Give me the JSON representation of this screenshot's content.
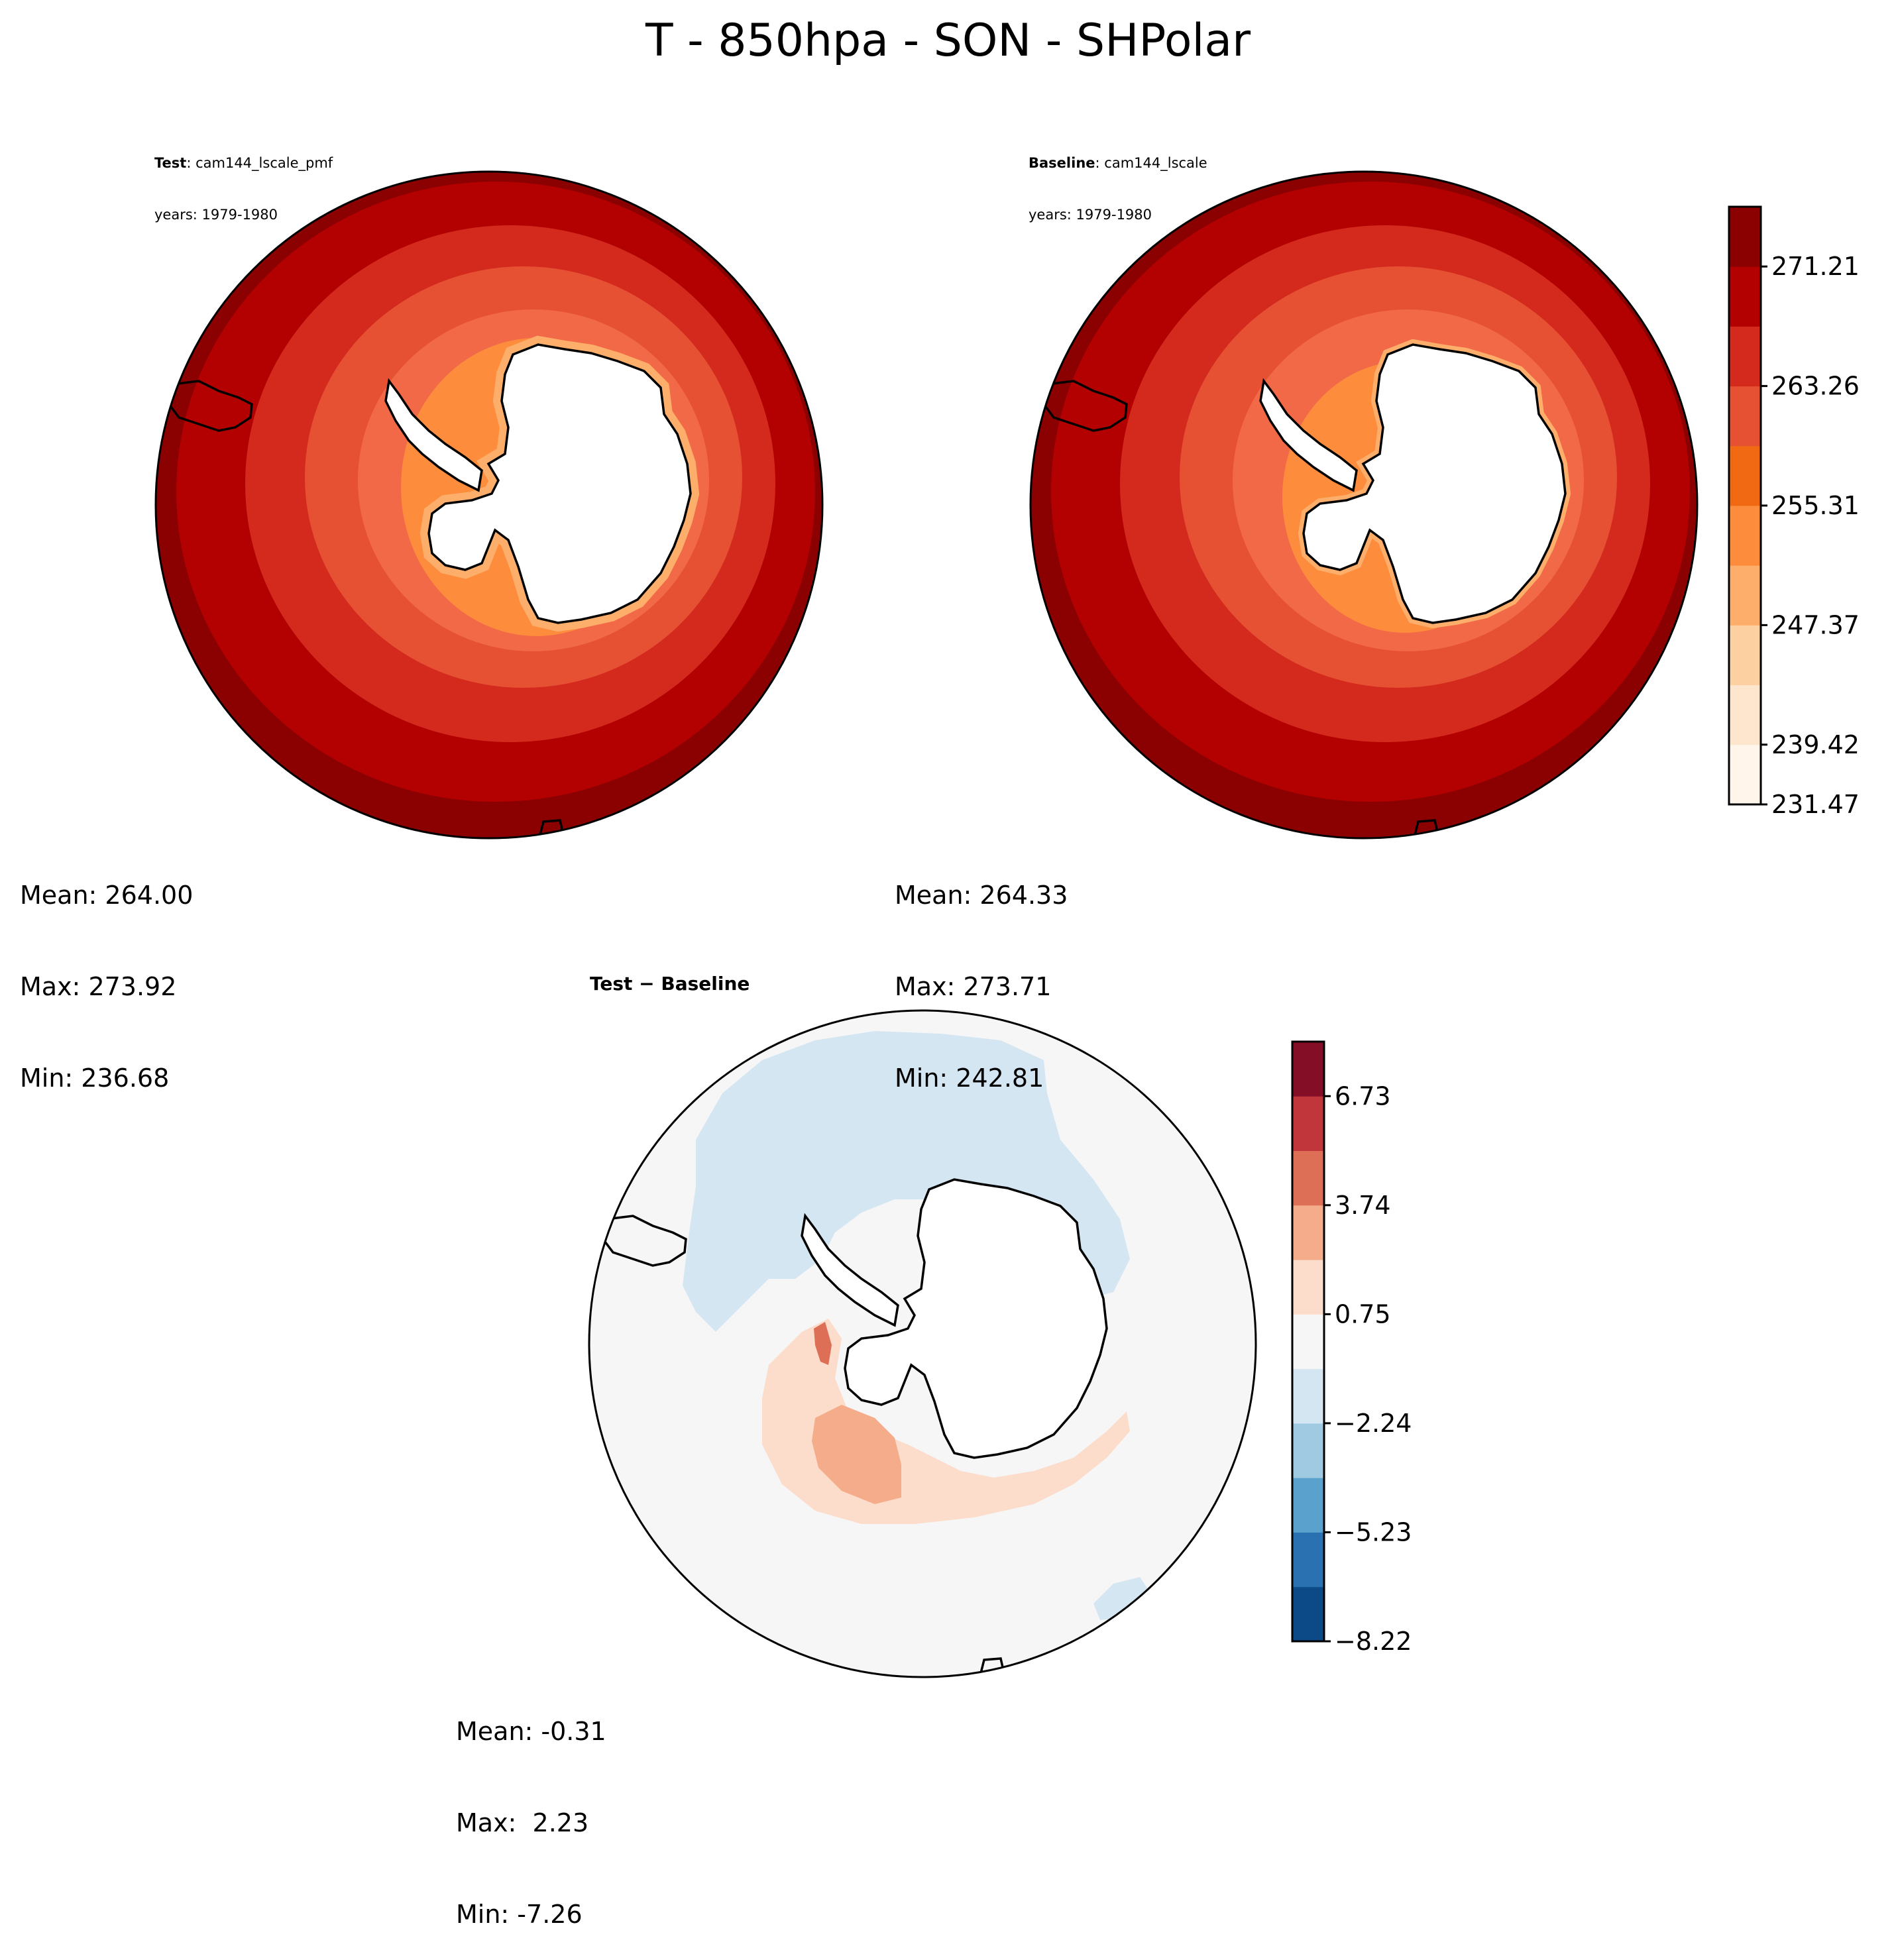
{
  "title": "T - 850hpa - SON - SHPolar",
  "panels": [
    {
      "id": "test",
      "label_bold": "Test",
      "label_sep": ": ",
      "case": "cam144_lscale_pmf",
      "years": "years: 1979-1980",
      "stats": {
        "mean": "Mean: 264.00",
        "max": "Max: 273.92",
        "min": "Min: 236.68"
      }
    },
    {
      "id": "baseline",
      "label_bold": "Baseline",
      "label_sep": ": ",
      "case": "cam144_lscale",
      "years": "years: 1979-1980",
      "stats": {
        "mean": "Mean: 264.33",
        "max": "Max: 273.71",
        "min": "Min: 242.81"
      }
    },
    {
      "id": "diff",
      "label_bold": "Test − Baseline",
      "stats": {
        "mean": "Mean: -0.31",
        "max": "Max:  2.23",
        "min": "Min: -7.26"
      }
    }
  ],
  "colorbars": {
    "field": {
      "ticks": [
        "271.21",
        "263.26",
        "255.31",
        "247.37",
        "239.42",
        "231.47"
      ],
      "colors": [
        "#fff5eb",
        "#fee6ce",
        "#fdd0a2",
        "#fdae6b",
        "#fd8d3c",
        "#f16913",
        "#e65134",
        "#d42a1e",
        "#b30000",
        "#8b0000"
      ],
      "levels_from_bottom": 10
    },
    "diff": {
      "ticks": [
        "6.73",
        "3.74",
        "0.75",
        "−2.24",
        "−5.23",
        "−8.22"
      ],
      "colors": [
        "#0c4a87",
        "#2a71b2",
        "#5aa1cd",
        "#9fcae1",
        "#d4e6f2",
        "#f6f6f6",
        "#fcdcca",
        "#f4ac8a",
        "#dd6f56",
        "#c1363a",
        "#850e27"
      ]
    }
  },
  "colors": {
    "land": "#ffffff",
    "coast": "#000000",
    "field_rings": [
      "#8b0000",
      "#b30000",
      "#d42a1e",
      "#e65134",
      "#f26948",
      "#fd8d3c",
      "#fdae6b"
    ],
    "diff_bg": "#f6f6f6",
    "diff_blue": "#d4e6f2",
    "diff_pink": "#fcdcca",
    "diff_salmon": "#f4ac8a",
    "diff_red": "#dd6f56"
  }
}
